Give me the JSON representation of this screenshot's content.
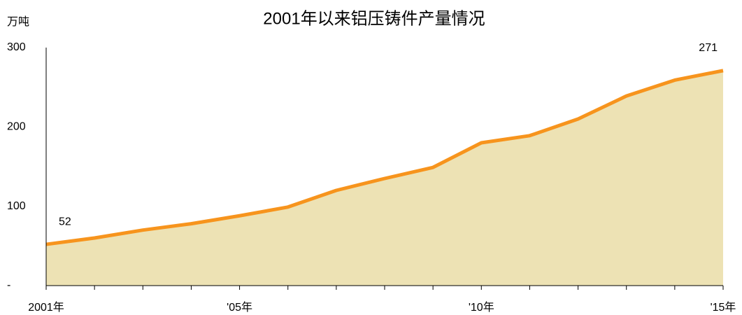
{
  "chart_data": {
    "type": "area",
    "title": "2001年以来铝压铸件产量情况",
    "y_label": "万吨",
    "categories": [
      "2001年",
      null,
      null,
      null,
      "'05年",
      null,
      null,
      null,
      null,
      "'10年",
      null,
      null,
      null,
      null,
      "'15年"
    ],
    "values": [
      52,
      60,
      70,
      78,
      88,
      99,
      120,
      135,
      149,
      180,
      189,
      210,
      239,
      259,
      271
    ],
    "value_labels": [
      "52",
      null,
      null,
      null,
      null,
      null,
      null,
      null,
      null,
      null,
      null,
      null,
      null,
      null,
      "271"
    ],
    "color": "#f7941d",
    "fill_color": "#ede2b4",
    "ylim": [
      0,
      300
    ],
    "yticks": [
      {
        "value": 0,
        "label": "-"
      },
      100,
      200,
      300
    ],
    "grid": false
  }
}
